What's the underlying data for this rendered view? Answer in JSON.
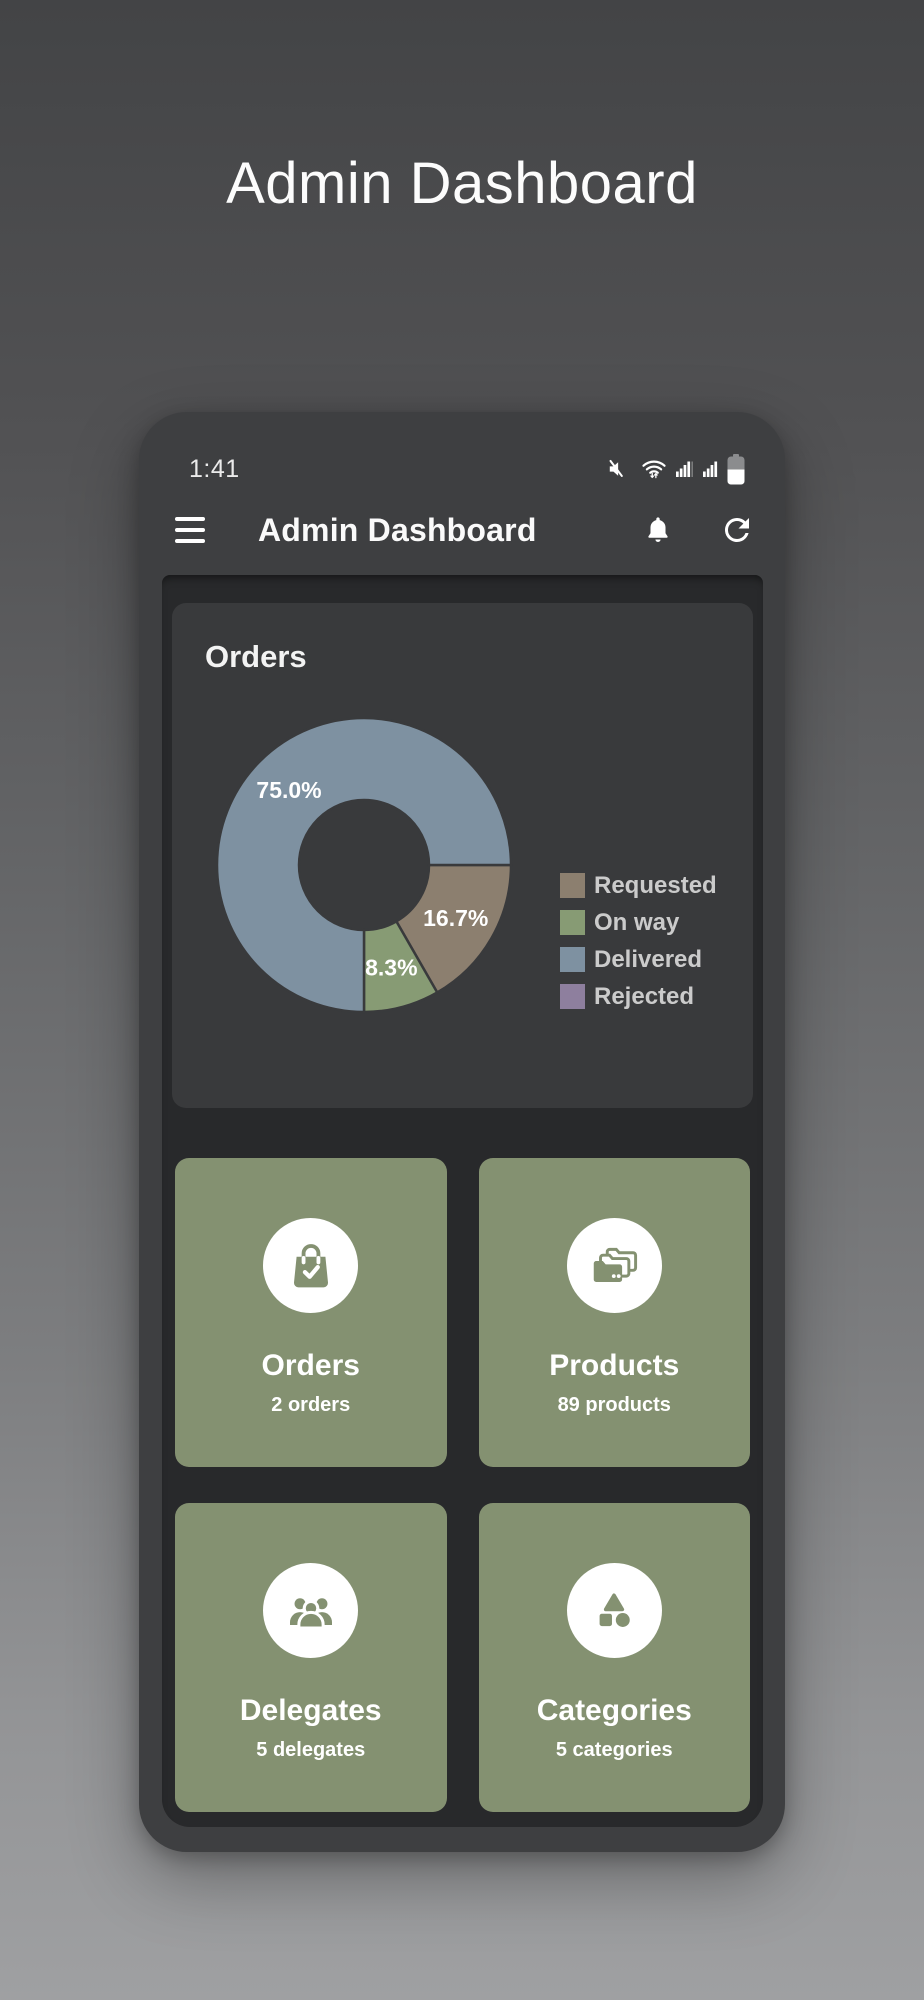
{
  "page_title": "Admin Dashboard",
  "phone": {
    "status_bar": {
      "time": "1:41",
      "icons": [
        "volume-mute",
        "wifi-arrows",
        "signal-sim1",
        "signal-sim2",
        "battery-half"
      ]
    },
    "app_bar": {
      "title": "Admin Dashboard",
      "menu_icon": "hamburger-menu",
      "actions": [
        {
          "name": "notifications",
          "icon": "bell"
        },
        {
          "name": "refresh",
          "icon": "refresh-arrow"
        }
      ]
    },
    "orders_card": {
      "title": "Orders"
    },
    "tiles": [
      {
        "label": "Orders",
        "sublabel": "2 orders",
        "icon": "shopping-bag-check"
      },
      {
        "label": "Products",
        "sublabel": "89 products",
        "icon": "folders-stack"
      },
      {
        "label": "Delegates",
        "sublabel": "5 delegates",
        "icon": "people-group"
      },
      {
        "label": "Categories",
        "sublabel": "5 categories",
        "icon": "shapes"
      }
    ]
  },
  "colors": {
    "tile_green": "#849171",
    "phone_frame": "#3e3f41",
    "screen_bg": "#28292b",
    "card_bg": "#393a3c",
    "legend_text": "#cbcbcb"
  },
  "chart_data": {
    "type": "pie",
    "donut": true,
    "title": "Orders",
    "start_angle_deg": 0,
    "direction": "clockwise",
    "categories": [
      "Requested",
      "On way",
      "Delivered",
      "Rejected"
    ],
    "values": [
      16.7,
      8.3,
      75.0,
      0
    ],
    "slice_labels": [
      "16.7%",
      "8.3%",
      "75.0%",
      ""
    ],
    "colors": [
      "#8c7f6f",
      "#879b74",
      "#7e91a1",
      "#8e7f9e"
    ],
    "legend_position": "right",
    "outer_radius": 147,
    "inner_radius": 65
  }
}
